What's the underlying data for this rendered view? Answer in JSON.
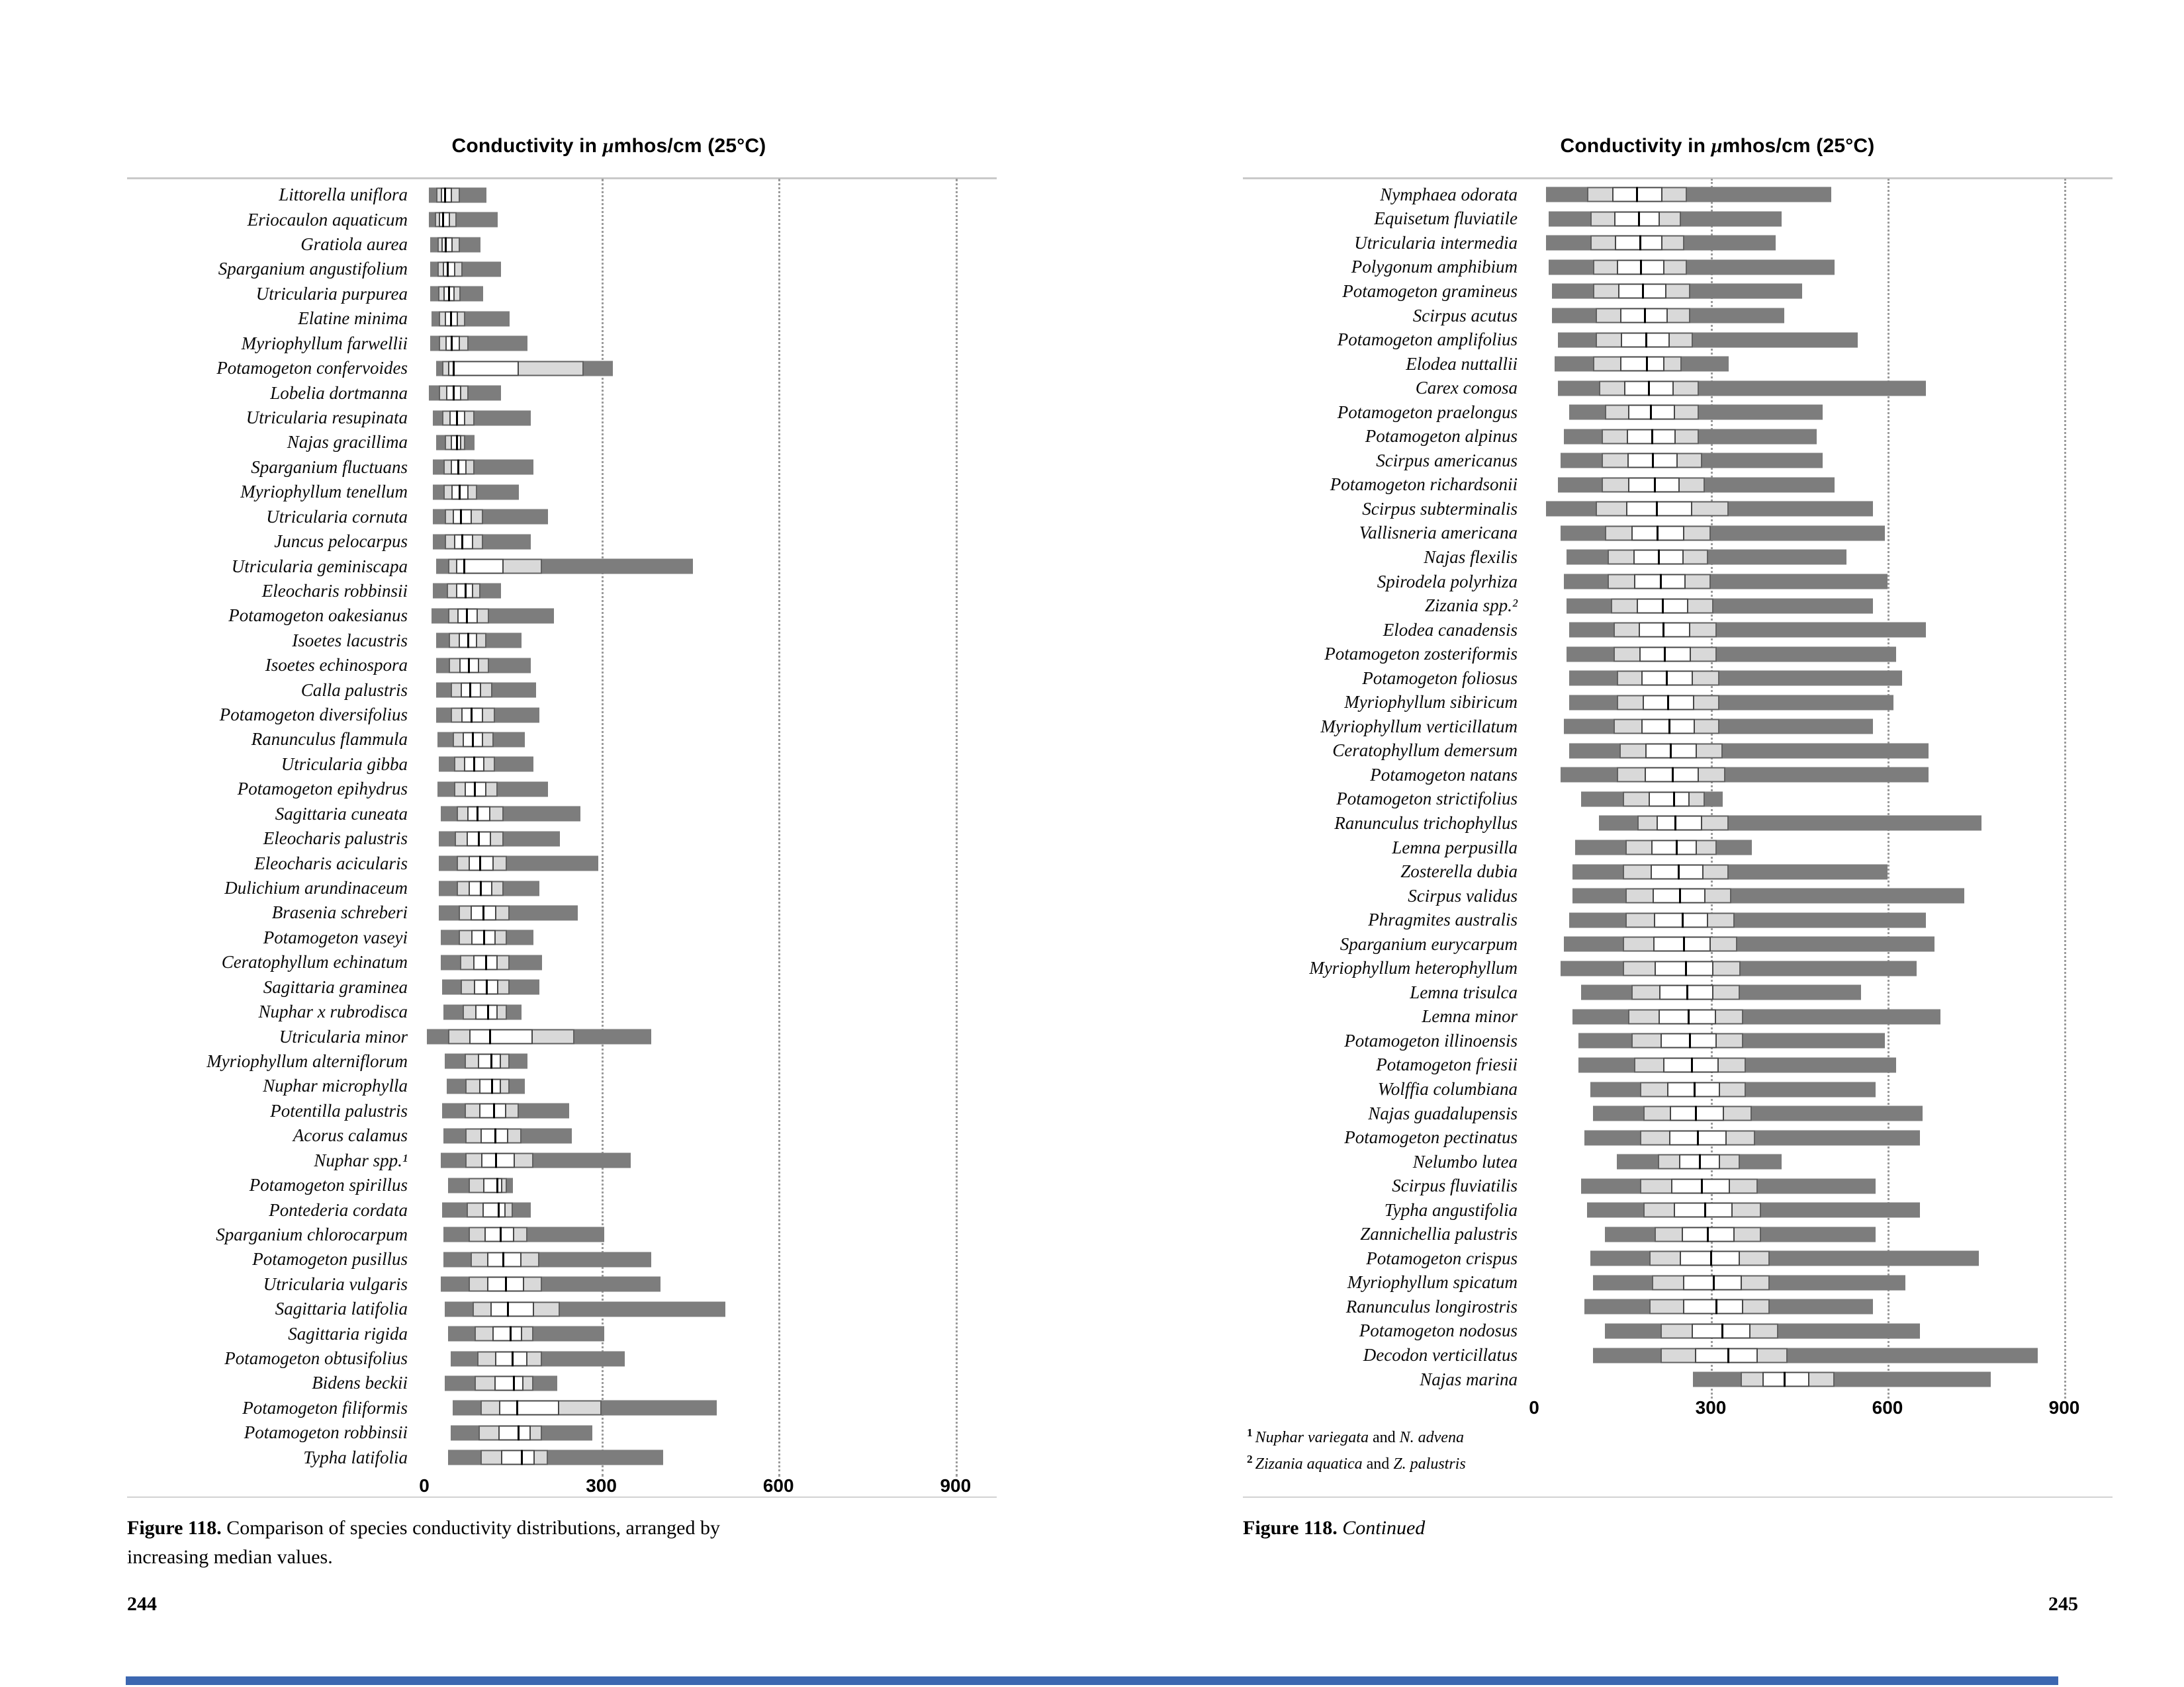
{
  "colors": {
    "bar_dark": "#7d7d7d",
    "bar_light": "#d9d9d9",
    "box_white": "#ffffff",
    "median": "#000000",
    "grid": "#9b9b9b",
    "rule": "#c9c9c9",
    "accent_strip": "#3c67b1"
  },
  "page_left": {
    "page_number": "244",
    "caption_label": "Figure 118.",
    "caption_text": "Comparison of species conductivity distributions, arranged by increasing median values."
  },
  "page_right": {
    "page_number": "245",
    "caption_label": "Figure 118.",
    "caption_continued": "Continued",
    "footnotes": [
      {
        "sup": "1",
        "italic1": "Nuphar variegata",
        "roman": " and ",
        "italic2": "N. advena"
      },
      {
        "sup": "2",
        "italic1": "Zizania aquatica",
        "roman": " and ",
        "italic2": "Z. palustris"
      }
    ]
  },
  "chart_data": [
    {
      "type": "box-range-horizontal",
      "page": "244",
      "title": "Conductivity in μmhos/cm (25°C)",
      "title_pre": "Conductivity in",
      "title_mu": "μ",
      "title_post": "mhos/cm (25°C)",
      "x_ticks": [
        0,
        300,
        600,
        900
      ],
      "x_range": [
        0,
        960
      ],
      "values_legend": "min, q1, median, q3, max (μmhos/cm)",
      "species": [
        {
          "name": "Littorella uniflora",
          "values": [
            8,
            20,
            35,
            60,
            105
          ]
        },
        {
          "name": "Eriocaulon aquaticum",
          "values": [
            8,
            18,
            32,
            55,
            125
          ]
        },
        {
          "name": "Gratiola aurea",
          "values": [
            10,
            22,
            36,
            60,
            95
          ]
        },
        {
          "name": "Sparganium angustifolium",
          "values": [
            10,
            22,
            40,
            65,
            130
          ]
        },
        {
          "name": "Utricularia purpurea",
          "values": [
            10,
            24,
            42,
            62,
            100
          ]
        },
        {
          "name": "Elatine minima",
          "values": [
            12,
            25,
            45,
            70,
            145
          ]
        },
        {
          "name": "Myriophyllum farwellii",
          "values": [
            10,
            25,
            46,
            75,
            175
          ]
        },
        {
          "name": "Potamogeton confervoides",
          "values": [
            20,
            30,
            50,
            270,
            320
          ]
        },
        {
          "name": "Lobelia dortmanna",
          "values": [
            8,
            25,
            50,
            75,
            130
          ]
        },
        {
          "name": "Utricularia resupinata",
          "values": [
            15,
            30,
            55,
            85,
            180
          ]
        },
        {
          "name": "Najas gracillima",
          "values": [
            20,
            35,
            55,
            70,
            85
          ]
        },
        {
          "name": "Sparganium fluctuans",
          "values": [
            15,
            32,
            58,
            85,
            185
          ]
        },
        {
          "name": "Myriophyllum tenellum",
          "values": [
            15,
            32,
            60,
            90,
            160
          ]
        },
        {
          "name": "Utricularia cornuta",
          "values": [
            15,
            35,
            62,
            100,
            210
          ]
        },
        {
          "name": "Juncus pelocarpus",
          "values": [
            15,
            35,
            65,
            100,
            180
          ]
        },
        {
          "name": "Utricularia geminiscapa",
          "values": [
            20,
            40,
            68,
            200,
            455
          ]
        },
        {
          "name": "Eleocharis robbinsii",
          "values": [
            15,
            38,
            70,
            95,
            130
          ]
        },
        {
          "name": "Potamogeton oakesianus",
          "values": [
            12,
            40,
            72,
            110,
            220
          ]
        },
        {
          "name": "Isoetes lacustris",
          "values": [
            20,
            42,
            74,
            105,
            165
          ]
        },
        {
          "name": "Isoetes echinospora",
          "values": [
            20,
            42,
            76,
            110,
            180
          ]
        },
        {
          "name": "Calla palustris",
          "values": [
            20,
            45,
            78,
            115,
            190
          ]
        },
        {
          "name": "Potamogeton diversifolius",
          "values": [
            20,
            45,
            80,
            120,
            195
          ]
        },
        {
          "name": "Ranunculus flammula",
          "values": [
            22,
            48,
            82,
            118,
            170
          ]
        },
        {
          "name": "Utricularia gibba",
          "values": [
            25,
            50,
            85,
            120,
            185
          ]
        },
        {
          "name": "Potamogeton epihydrus",
          "values": [
            22,
            50,
            86,
            125,
            210
          ]
        },
        {
          "name": "Sagittaria cuneata",
          "values": [
            28,
            55,
            90,
            135,
            265
          ]
        },
        {
          "name": "Eleocharis palustris",
          "values": [
            25,
            52,
            92,
            135,
            230
          ]
        },
        {
          "name": "Eleocharis acicularis",
          "values": [
            25,
            55,
            95,
            140,
            295
          ]
        },
        {
          "name": "Dulichium arundinaceum",
          "values": [
            25,
            55,
            96,
            135,
            195
          ]
        },
        {
          "name": "Brasenia schreberi",
          "values": [
            25,
            58,
            100,
            145,
            260
          ]
        },
        {
          "name": "Potamogeton vaseyi",
          "values": [
            28,
            58,
            102,
            140,
            185
          ]
        },
        {
          "name": "Ceratophyllum echinatum",
          "values": [
            28,
            60,
            105,
            145,
            200
          ]
        },
        {
          "name": "Sagittaria graminea",
          "values": [
            30,
            62,
            106,
            145,
            195
          ]
        },
        {
          "name": "Nuphar x rubrodisca",
          "values": [
            32,
            65,
            108,
            140,
            165
          ]
        },
        {
          "name": "Utricularia minor",
          "values": [
            5,
            40,
            112,
            255,
            385
          ]
        },
        {
          "name": "Myriophyllum alterniflorum",
          "values": [
            35,
            68,
            114,
            145,
            175
          ]
        },
        {
          "name": "Nuphar microphylla",
          "values": [
            38,
            70,
            115,
            145,
            170
          ]
        },
        {
          "name": "Potentilla palustris",
          "values": [
            30,
            68,
            118,
            160,
            245
          ]
        },
        {
          "name": "Acorus calamus",
          "values": [
            32,
            70,
            120,
            165,
            250
          ]
        },
        {
          "name": "Nuphar spp.¹",
          "values": [
            28,
            70,
            122,
            185,
            350
          ]
        },
        {
          "name": "Potamogeton spirillus",
          "values": [
            40,
            75,
            124,
            140,
            150
          ]
        },
        {
          "name": "Pontederia cordata",
          "values": [
            30,
            72,
            126,
            150,
            180
          ]
        },
        {
          "name": "Sparganium chlorocarpum",
          "values": [
            32,
            75,
            130,
            175,
            305
          ]
        },
        {
          "name": "Potamogeton pusillus",
          "values": [
            32,
            78,
            134,
            195,
            385
          ]
        },
        {
          "name": "Utricularia vulgaris",
          "values": [
            28,
            75,
            138,
            200,
            400
          ]
        },
        {
          "name": "Sagittaria latifolia",
          "values": [
            35,
            82,
            142,
            230,
            510
          ]
        },
        {
          "name": "Sagittaria rigida",
          "values": [
            40,
            85,
            146,
            185,
            305
          ]
        },
        {
          "name": "Potamogeton obtusifolius",
          "values": [
            45,
            90,
            150,
            200,
            340
          ]
        },
        {
          "name": "Bidens beckii",
          "values": [
            35,
            85,
            152,
            185,
            225
          ]
        },
        {
          "name": "Potamogeton filiformis",
          "values": [
            48,
            95,
            158,
            300,
            495
          ]
        },
        {
          "name": "Potamogeton robbinsii",
          "values": [
            45,
            92,
            160,
            200,
            285
          ]
        },
        {
          "name": "Typha latifolia",
          "values": [
            40,
            95,
            165,
            210,
            405
          ]
        }
      ]
    },
    {
      "type": "box-range-horizontal",
      "page": "245",
      "title": "Conductivity in μmhos/cm (25°C)",
      "title_pre": "Conductivity in",
      "title_mu": "μ",
      "title_post": "mhos/cm (25°C)",
      "x_ticks": [
        0,
        300,
        600,
        900
      ],
      "x_range": [
        0,
        960
      ],
      "values_legend": "min, q1, median, q3, max (μmhos/cm)",
      "species": [
        {
          "name": "Nymphaea odorata",
          "values": [
            20,
            90,
            175,
            260,
            505
          ]
        },
        {
          "name": "Equisetum fluviatile",
          "values": [
            25,
            95,
            178,
            250,
            420
          ]
        },
        {
          "name": "Utricularia intermedia",
          "values": [
            20,
            95,
            180,
            255,
            410
          ]
        },
        {
          "name": "Polygonum amphibium",
          "values": [
            25,
            100,
            182,
            260,
            510
          ]
        },
        {
          "name": "Potamogeton gramineus",
          "values": [
            30,
            100,
            185,
            265,
            455
          ]
        },
        {
          "name": "Scirpus acutus",
          "values": [
            30,
            105,
            188,
            265,
            425
          ]
        },
        {
          "name": "Potamogeton amplifolius",
          "values": [
            40,
            105,
            190,
            270,
            550
          ]
        },
        {
          "name": "Elodea nuttallii",
          "values": [
            35,
            100,
            192,
            250,
            330
          ]
        },
        {
          "name": "Carex comosa",
          "values": [
            40,
            110,
            195,
            280,
            665
          ]
        },
        {
          "name": "Potamogeton praelongus",
          "values": [
            60,
            120,
            198,
            280,
            490
          ]
        },
        {
          "name": "Potamogeton alpinus",
          "values": [
            50,
            115,
            200,
            280,
            480
          ]
        },
        {
          "name": "Scirpus americanus",
          "values": [
            45,
            115,
            202,
            285,
            490
          ]
        },
        {
          "name": "Potamogeton richardsonii",
          "values": [
            40,
            115,
            205,
            290,
            510
          ]
        },
        {
          "name": "Scirpus subterminalis",
          "values": [
            20,
            105,
            208,
            330,
            575
          ]
        },
        {
          "name": "Vallisneria americana",
          "values": [
            45,
            120,
            210,
            300,
            595
          ]
        },
        {
          "name": "Najas flexilis",
          "values": [
            55,
            125,
            212,
            295,
            530
          ]
        },
        {
          "name": "Spirodela polyrhiza",
          "values": [
            50,
            125,
            215,
            300,
            600
          ]
        },
        {
          "name": "Zizania spp.²",
          "values": [
            55,
            130,
            218,
            305,
            575
          ]
        },
        {
          "name": "Elodea canadensis",
          "values": [
            60,
            135,
            220,
            310,
            665
          ]
        },
        {
          "name": "Potamogeton zosteriformis",
          "values": [
            55,
            135,
            222,
            310,
            615
          ]
        },
        {
          "name": "Potamogeton foliosus",
          "values": [
            60,
            140,
            225,
            315,
            625
          ]
        },
        {
          "name": "Myriophyllum sibiricum",
          "values": [
            60,
            140,
            228,
            315,
            610
          ]
        },
        {
          "name": "Myriophyllum verticillatum",
          "values": [
            50,
            135,
            230,
            315,
            575
          ]
        },
        {
          "name": "Ceratophyllum demersum",
          "values": [
            60,
            145,
            232,
            320,
            670
          ]
        },
        {
          "name": "Potamogeton natans",
          "values": [
            45,
            140,
            235,
            325,
            670
          ]
        },
        {
          "name": "Potamogeton strictifolius",
          "values": [
            80,
            150,
            238,
            290,
            320
          ]
        },
        {
          "name": "Ranunculus trichophyllus",
          "values": [
            110,
            175,
            240,
            330,
            760
          ]
        },
        {
          "name": "Lemna perpusilla",
          "values": [
            70,
            155,
            242,
            310,
            370
          ]
        },
        {
          "name": "Zosterella dubia",
          "values": [
            65,
            150,
            245,
            330,
            600
          ]
        },
        {
          "name": "Scirpus validus",
          "values": [
            65,
            155,
            248,
            335,
            730
          ]
        },
        {
          "name": "Phragmites australis",
          "values": [
            60,
            155,
            252,
            340,
            665
          ]
        },
        {
          "name": "Sparganium eurycarpum",
          "values": [
            50,
            150,
            255,
            345,
            680
          ]
        },
        {
          "name": "Myriophyllum heterophyllum",
          "values": [
            45,
            150,
            258,
            350,
            650
          ]
        },
        {
          "name": "Lemna trisulca",
          "values": [
            80,
            165,
            260,
            350,
            555
          ]
        },
        {
          "name": "Lemna minor",
          "values": [
            65,
            160,
            262,
            355,
            690
          ]
        },
        {
          "name": "Potamogeton illinoensis",
          "values": [
            75,
            165,
            265,
            355,
            595
          ]
        },
        {
          "name": "Potamogeton friesii",
          "values": [
            75,
            170,
            268,
            360,
            615
          ]
        },
        {
          "name": "Wolffia columbiana",
          "values": [
            95,
            180,
            272,
            360,
            580
          ]
        },
        {
          "name": "Najas guadalupensis",
          "values": [
            100,
            185,
            275,
            370,
            660
          ]
        },
        {
          "name": "Potamogeton pectinatus",
          "values": [
            85,
            180,
            278,
            375,
            655
          ]
        },
        {
          "name": "Nelumbo lutea",
          "values": [
            140,
            210,
            282,
            350,
            420
          ]
        },
        {
          "name": "Scirpus fluviatilis",
          "values": [
            80,
            180,
            285,
            380,
            580
          ]
        },
        {
          "name": "Typha angustifolia",
          "values": [
            90,
            185,
            290,
            385,
            655
          ]
        },
        {
          "name": "Zannichellia palustris",
          "values": [
            120,
            205,
            295,
            385,
            580
          ]
        },
        {
          "name": "Potamogeton crispus",
          "values": [
            95,
            195,
            300,
            400,
            755
          ]
        },
        {
          "name": "Myriophyllum spicatum",
          "values": [
            100,
            200,
            305,
            400,
            630
          ]
        },
        {
          "name": "Ranunculus longirostris",
          "values": [
            85,
            195,
            310,
            400,
            575
          ]
        },
        {
          "name": "Potamogeton nodosus",
          "values": [
            120,
            215,
            320,
            415,
            655
          ]
        },
        {
          "name": "Decodon verticillatus",
          "values": [
            100,
            215,
            330,
            430,
            855
          ]
        },
        {
          "name": "Najas marina",
          "values": [
            270,
            350,
            425,
            510,
            775
          ]
        }
      ]
    }
  ]
}
